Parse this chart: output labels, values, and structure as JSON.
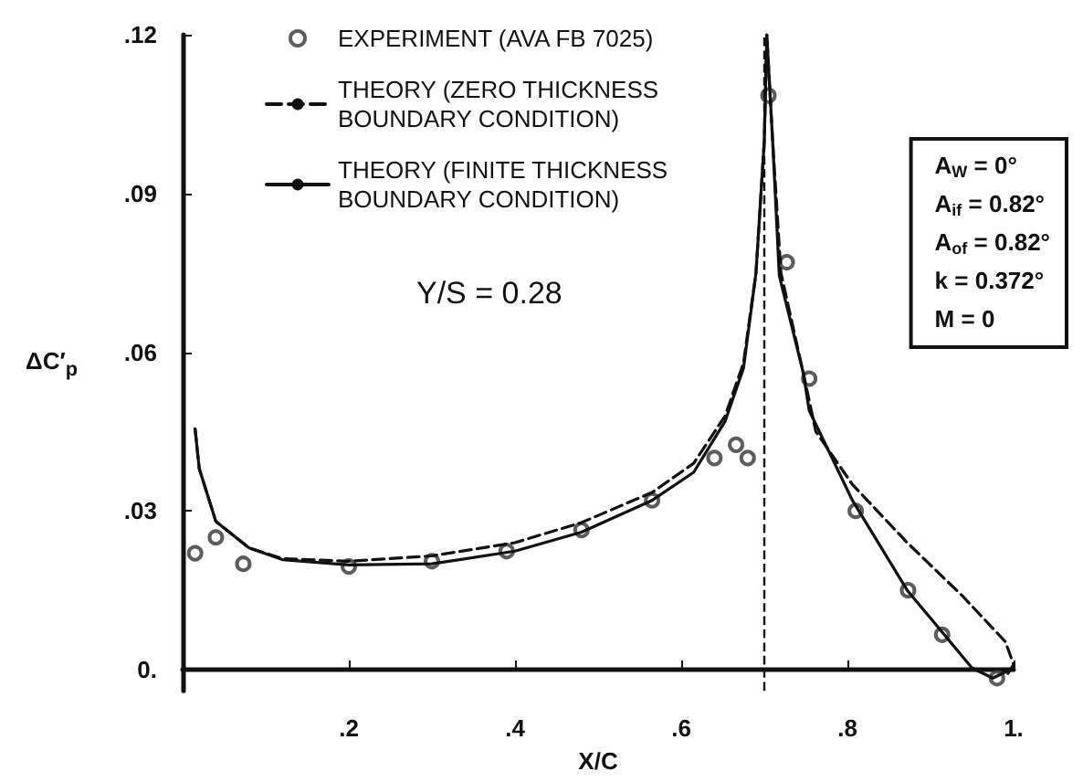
{
  "chart_data": {
    "type": "line",
    "xlabel": "X/C",
    "ylabel": "ΔC′$_{p}$",
    "xlim": [
      0,
      1.0
    ],
    "ylim": [
      -0.004,
      0.12
    ],
    "xticks": [
      {
        "value": 0.2,
        "label": ".2"
      },
      {
        "value": 0.4,
        "label": ".4"
      },
      {
        "value": 0.6,
        "label": ".6"
      },
      {
        "value": 0.8,
        "label": ".8"
      },
      {
        "value": 1.0,
        "label": "1."
      }
    ],
    "yticks": [
      {
        "value": 0,
        "label": "0."
      },
      {
        "value": 0.03,
        "label": ".03"
      },
      {
        "value": 0.06,
        "label": ".06"
      },
      {
        "value": 0.09,
        "label": ".09"
      },
      {
        "value": 0.12,
        "label": ".12"
      }
    ],
    "grid": false,
    "legend": "top",
    "series": [
      {
        "name": "EXPERIMENT (AVA FB 7025)",
        "type": "scatter",
        "marker": "circle",
        "color": "#333333",
        "x": [
          0.015,
          0.04,
          0.073,
          0.2,
          0.3,
          0.39,
          0.48,
          0.565,
          0.64,
          0.666,
          0.68,
          0.705,
          0.727,
          0.754,
          0.81,
          0.873,
          0.914,
          0.98
        ],
        "values": [
          0.022,
          0.025,
          0.02,
          0.0195,
          0.0205,
          0.0224,
          0.0264,
          0.032,
          0.04,
          0.0425,
          0.04,
          0.1085,
          0.077,
          0.055,
          0.03,
          0.015,
          0.0066,
          -0.0016
        ]
      },
      {
        "name": "THEORY (ZERO THICKNESS BOUNDARY CONDITION)",
        "marker": "none",
        "line_style": "dashed",
        "color": "#111111",
        "x": [
          0.015,
          0.02,
          0.04,
          0.08,
          0.12,
          0.2,
          0.3,
          0.4,
          0.48,
          0.565,
          0.615,
          0.653,
          0.675,
          0.69,
          0.7,
          0.703,
          0.71,
          0.72,
          0.747,
          0.762,
          0.806,
          0.872,
          0.938,
          0.99,
          1.0,
          0.99
        ],
        "values": [
          0.0455,
          0.038,
          0.028,
          0.023,
          0.021,
          0.0205,
          0.0215,
          0.024,
          0.0278,
          0.0335,
          0.039,
          0.048,
          0.058,
          0.075,
          0.1,
          0.12,
          0.1,
          0.075,
          0.056,
          0.045,
          0.035,
          0.024,
          0.014,
          0.0053,
          0.001,
          -0.0015
        ]
      },
      {
        "name": "THEORY (FINITE THICKNESS BOUNDARY CONDITION)",
        "marker": "none",
        "line_style": "solid",
        "color": "#111111",
        "x": [
          0.015,
          0.02,
          0.04,
          0.08,
          0.12,
          0.2,
          0.3,
          0.4,
          0.48,
          0.565,
          0.615,
          0.653,
          0.675,
          0.69,
          0.7,
          0.703,
          0.71,
          0.718,
          0.747,
          0.754,
          0.806,
          0.872,
          0.95,
          0.975,
          1.0
        ],
        "values": [
          0.0455,
          0.038,
          0.028,
          0.023,
          0.0208,
          0.0198,
          0.02,
          0.0224,
          0.026,
          0.032,
          0.0373,
          0.047,
          0.057,
          0.075,
          0.1,
          0.12,
          0.1,
          0.0745,
          0.056,
          0.049,
          0.032,
          0.015,
          0.0003,
          -0.0016,
          0.0003
        ]
      }
    ],
    "ref_lines": [
      {
        "axis": "x",
        "value": 0.7,
        "line_style": "dashed",
        "color": "#111111"
      }
    ],
    "annotations": [
      "Y/S = 0.28",
      "A$_{W}$ = 0°",
      "A$_{if}$ = 0.82°",
      "A$_{of}$ = 0.82°",
      "k = 0.372°",
      "M = 0"
    ]
  }
}
